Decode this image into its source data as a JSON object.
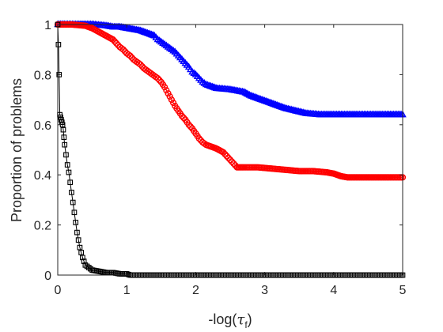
{
  "chart_data": {
    "type": "line",
    "title": "",
    "xlabel": "-log(",
    "xlabel_symbol": "τ",
    "xlabel_sub": "f",
    "xlabel_close": ")",
    "ylabel": "Proportion of problems",
    "xlim": [
      0,
      5
    ],
    "ylim": [
      0,
      1
    ],
    "x_ticks": [
      0,
      1,
      2,
      3,
      4,
      5
    ],
    "x_tick_labels": [
      "0",
      "1",
      "2",
      "3",
      "4",
      "5"
    ],
    "y_ticks": [
      0,
      0.2,
      0.4,
      0.6,
      0.8,
      1
    ],
    "y_tick_labels": [
      "0",
      "0.2",
      "0.4",
      "0.6",
      "0.8",
      "1"
    ],
    "grid": false,
    "legend": "none",
    "series": [
      {
        "color": "#0000ff",
        "marker": "triangle",
        "points": [
          [
            0,
            1
          ],
          [
            0.1,
            1
          ],
          [
            0.3,
            1
          ],
          [
            0.5,
            1
          ],
          [
            0.7,
            0.995
          ],
          [
            0.8,
            0.99
          ],
          [
            0.9,
            0.99
          ],
          [
            1.0,
            0.985
          ],
          [
            1.1,
            0.98
          ],
          [
            1.2,
            0.975
          ],
          [
            1.3,
            0.965
          ],
          [
            1.4,
            0.955
          ],
          [
            1.45,
            0.94
          ],
          [
            1.5,
            0.93
          ],
          [
            1.55,
            0.92
          ],
          [
            1.6,
            0.91
          ],
          [
            1.65,
            0.9
          ],
          [
            1.7,
            0.89
          ],
          [
            1.75,
            0.875
          ],
          [
            1.8,
            0.86
          ],
          [
            1.85,
            0.845
          ],
          [
            1.9,
            0.83
          ],
          [
            1.95,
            0.81
          ],
          [
            2.0,
            0.8
          ],
          [
            2.05,
            0.785
          ],
          [
            2.1,
            0.77
          ],
          [
            2.15,
            0.76
          ],
          [
            2.2,
            0.755
          ],
          [
            2.3,
            0.745
          ],
          [
            2.5,
            0.74
          ],
          [
            2.7,
            0.73
          ],
          [
            2.8,
            0.715
          ],
          [
            2.9,
            0.705
          ],
          [
            3.0,
            0.695
          ],
          [
            3.1,
            0.685
          ],
          [
            3.2,
            0.675
          ],
          [
            3.3,
            0.665
          ],
          [
            3.45,
            0.655
          ],
          [
            3.6,
            0.645
          ],
          [
            3.8,
            0.64
          ],
          [
            4.2,
            0.64
          ],
          [
            4.6,
            0.64
          ],
          [
            5.0,
            0.64
          ]
        ]
      },
      {
        "color": "#ff0000",
        "marker": "circle",
        "points": [
          [
            0,
            1
          ],
          [
            0.2,
            1
          ],
          [
            0.4,
            0.995
          ],
          [
            0.5,
            0.985
          ],
          [
            0.6,
            0.97
          ],
          [
            0.7,
            0.955
          ],
          [
            0.8,
            0.94
          ],
          [
            0.85,
            0.925
          ],
          [
            0.9,
            0.91
          ],
          [
            0.95,
            0.9
          ],
          [
            1.0,
            0.885
          ],
          [
            1.05,
            0.875
          ],
          [
            1.1,
            0.86
          ],
          [
            1.15,
            0.85
          ],
          [
            1.2,
            0.84
          ],
          [
            1.25,
            0.825
          ],
          [
            1.3,
            0.815
          ],
          [
            1.35,
            0.805
          ],
          [
            1.4,
            0.795
          ],
          [
            1.45,
            0.785
          ],
          [
            1.5,
            0.77
          ],
          [
            1.55,
            0.75
          ],
          [
            1.6,
            0.725
          ],
          [
            1.65,
            0.7
          ],
          [
            1.7,
            0.675
          ],
          [
            1.75,
            0.655
          ],
          [
            1.8,
            0.635
          ],
          [
            1.85,
            0.62
          ],
          [
            1.9,
            0.6
          ],
          [
            1.95,
            0.585
          ],
          [
            2.0,
            0.565
          ],
          [
            2.05,
            0.545
          ],
          [
            2.1,
            0.53
          ],
          [
            2.15,
            0.52
          ],
          [
            2.2,
            0.515
          ],
          [
            2.3,
            0.505
          ],
          [
            2.4,
            0.49
          ],
          [
            2.45,
            0.475
          ],
          [
            2.5,
            0.46
          ],
          [
            2.55,
            0.445
          ],
          [
            2.6,
            0.43
          ],
          [
            2.7,
            0.43
          ],
          [
            2.9,
            0.43
          ],
          [
            3.1,
            0.425
          ],
          [
            3.3,
            0.42
          ],
          [
            3.5,
            0.415
          ],
          [
            3.7,
            0.415
          ],
          [
            3.9,
            0.41
          ],
          [
            4.0,
            0.405
          ],
          [
            4.1,
            0.395
          ],
          [
            4.2,
            0.39
          ],
          [
            4.5,
            0.39
          ],
          [
            4.8,
            0.39
          ],
          [
            5.0,
            0.39
          ]
        ]
      },
      {
        "color": "#000000",
        "marker": "square",
        "points": [
          [
            0,
            1
          ],
          [
            0.01,
            0.92
          ],
          [
            0.02,
            0.8
          ],
          [
            0.03,
            0.64
          ],
          [
            0.04,
            0.63
          ],
          [
            0.05,
            0.62
          ],
          [
            0.06,
            0.61
          ],
          [
            0.07,
            0.6
          ],
          [
            0.08,
            0.58
          ],
          [
            0.09,
            0.55
          ],
          [
            0.1,
            0.52
          ],
          [
            0.12,
            0.48
          ],
          [
            0.14,
            0.44
          ],
          [
            0.16,
            0.41
          ],
          [
            0.18,
            0.37
          ],
          [
            0.2,
            0.33
          ],
          [
            0.22,
            0.29
          ],
          [
            0.24,
            0.25
          ],
          [
            0.26,
            0.21
          ],
          [
            0.28,
            0.17
          ],
          [
            0.3,
            0.14
          ],
          [
            0.32,
            0.11
          ],
          [
            0.34,
            0.09
          ],
          [
            0.36,
            0.07
          ],
          [
            0.38,
            0.055
          ],
          [
            0.4,
            0.04
          ],
          [
            0.45,
            0.03
          ],
          [
            0.5,
            0.02
          ],
          [
            0.6,
            0.015
          ],
          [
            0.7,
            0.01
          ],
          [
            0.8,
            0.01
          ],
          [
            0.9,
            0.005
          ],
          [
            1.0,
            0.005
          ],
          [
            1.05,
            0
          ],
          [
            1.5,
            0
          ],
          [
            2.0,
            0
          ],
          [
            2.5,
            0
          ],
          [
            3.0,
            0
          ],
          [
            3.5,
            0
          ],
          [
            4.0,
            0
          ],
          [
            4.5,
            0
          ],
          [
            5.0,
            0
          ]
        ]
      }
    ]
  }
}
